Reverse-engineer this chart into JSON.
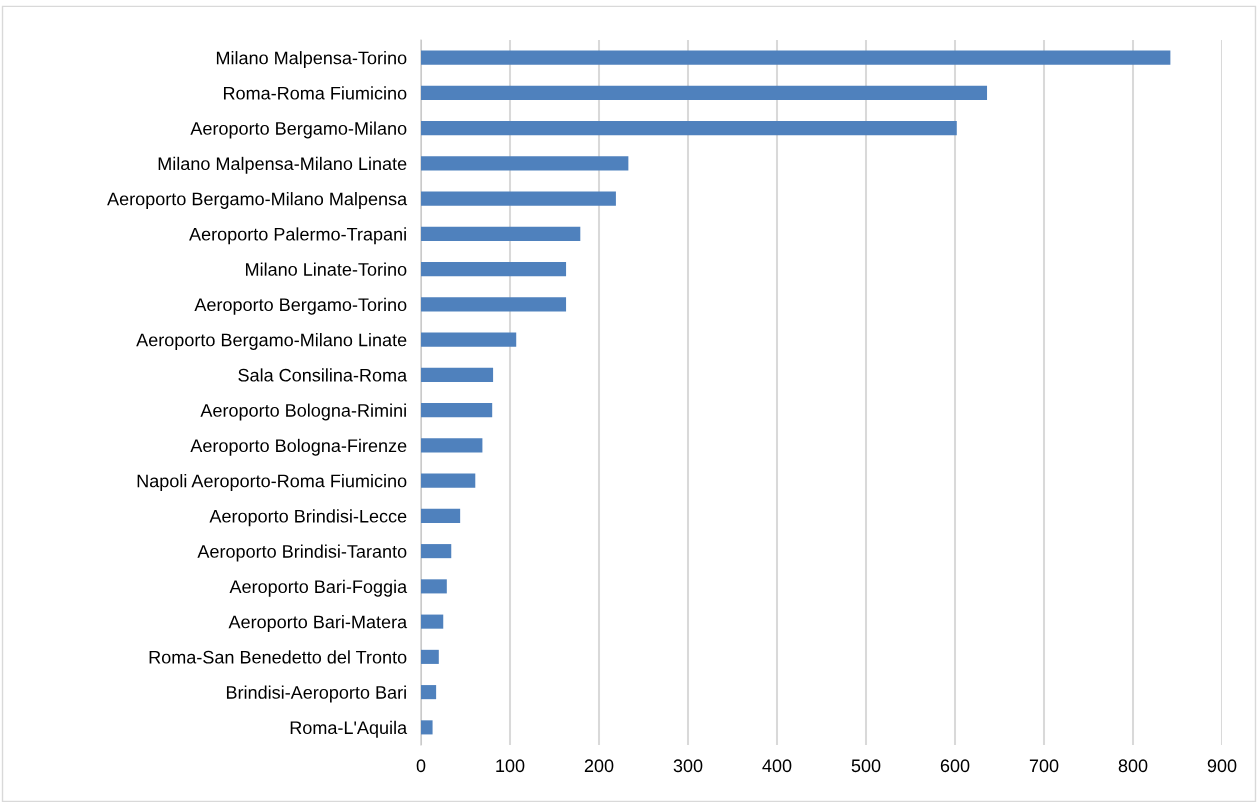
{
  "chart_data": {
    "type": "bar",
    "orientation": "horizontal",
    "categories": [
      "Milano Malpensa-Torino",
      "Roma-Roma Fiumicino",
      "Aeroporto Bergamo-Milano",
      "Milano Malpensa-Milano Linate",
      "Aeroporto Bergamo-Milano Malpensa",
      "Aeroporto Palermo-Trapani",
      "Milano Linate-Torino",
      "Aeroporto Bergamo-Torino",
      "Aeroporto Bergamo-Milano Linate",
      "Sala Consilina-Roma",
      "Aeroporto Bologna-Rimini",
      "Aeroporto Bologna-Firenze",
      "Napoli Aeroporto-Roma Fiumicino",
      "Aeroporto Brindisi-Lecce",
      "Aeroporto Brindisi-Taranto",
      "Aeroporto Bari-Foggia",
      "Aeroporto Bari-Matera",
      "Roma-San Benedetto del Tronto",
      "Brindisi-Aeroporto Bari",
      "Roma-L'Aquila"
    ],
    "values": [
      842,
      636,
      602,
      233,
      219,
      179,
      163,
      163,
      107,
      81,
      80,
      69,
      61,
      44,
      34,
      29,
      25,
      20,
      17,
      13
    ],
    "color": "#4f81bd",
    "xlim": [
      0,
      900
    ],
    "xticks": [
      0,
      100,
      200,
      300,
      400,
      500,
      600,
      700,
      800,
      900
    ],
    "grid": "x"
  }
}
